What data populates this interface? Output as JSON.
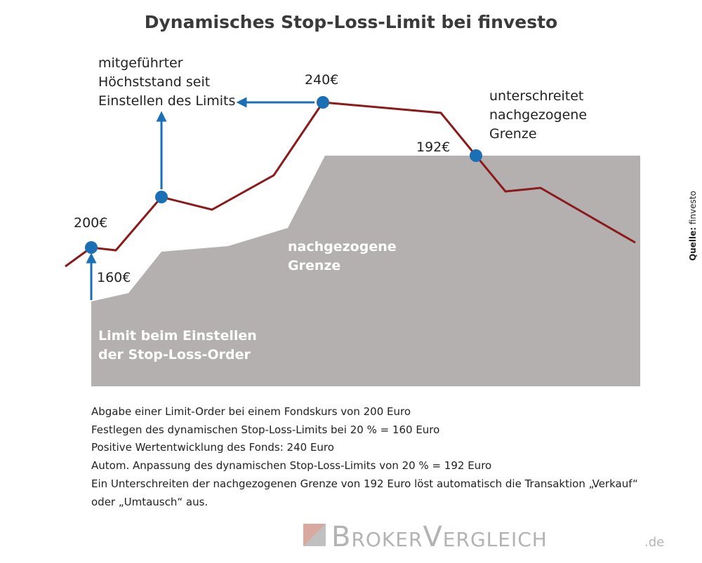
{
  "title": "Dynamisches Stop-Loss-Limit bei finvesto",
  "annotations": {
    "high_watermark": [
      "mitgeführter",
      "Höchststand seit",
      "Einstellen des Limits"
    ],
    "breach": [
      "unterschreitet",
      "nachgezogene",
      "Grenze"
    ],
    "trailing": [
      "nachgezogene",
      "Grenze"
    ],
    "initial_limit": [
      "Limit beim Einstellen",
      "der Stop-Loss-Order"
    ]
  },
  "price_labels": [
    "200€",
    "160€",
    "240€",
    "192€"
  ],
  "notes": [
    "Abgabe einer Limit-Order bei einem Fondskurs von 200 Euro",
    "Festlegen des dynamischen Stop-Loss-Limits bei 20 % = 160 Euro",
    "Positive Wertentwicklung des Fonds: 240 Euro",
    "Autom. Anpassung des dynamischen Stop-Loss-Limits von 20 % = 192 Euro",
    "Ein Unterschreiten der nachgezogenen Grenze von 192 Euro löst automatisch die Transaktion „Verkauf“",
    "oder „Umtausch“ aus."
  ],
  "source": {
    "label": "Quelle:",
    "name": "finvesto"
  },
  "logo": {
    "brand": "BrokerVergleich",
    "tld": ".de"
  }
}
